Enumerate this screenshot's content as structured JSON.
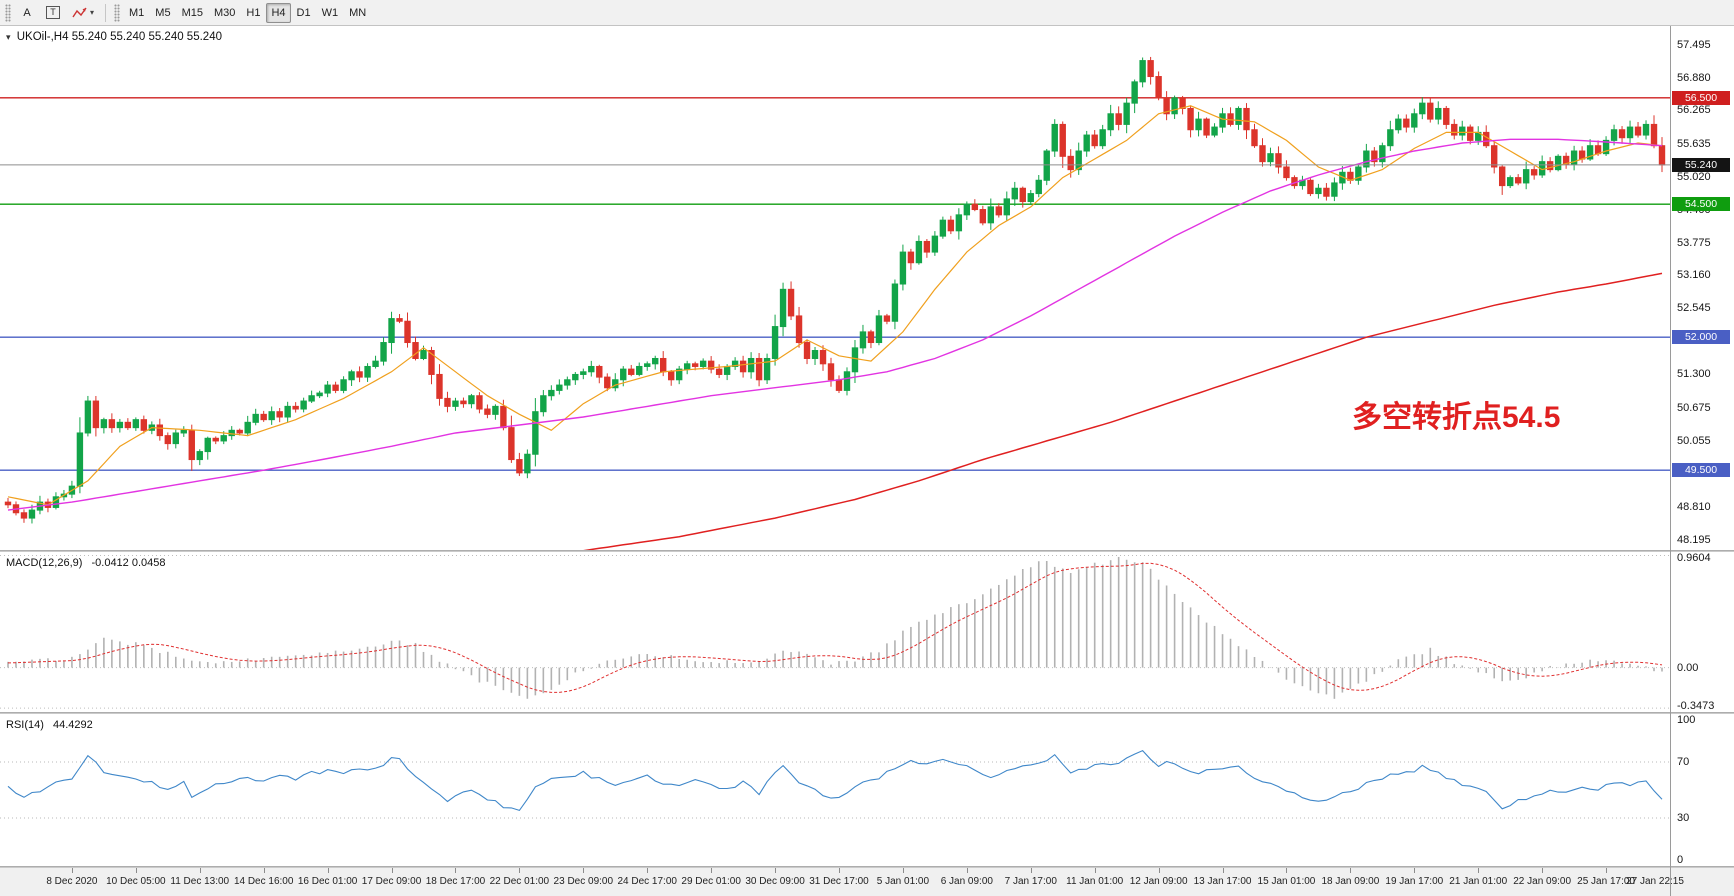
{
  "toolbar": {
    "text_tool": "A",
    "text_box_tool": "T",
    "timeframes": [
      {
        "label": "M1",
        "active": false
      },
      {
        "label": "M5",
        "active": false
      },
      {
        "label": "M15",
        "active": false
      },
      {
        "label": "M30",
        "active": false
      },
      {
        "label": "H1",
        "active": false
      },
      {
        "label": "H4",
        "active": true
      },
      {
        "label": "D1",
        "active": false
      },
      {
        "label": "W1",
        "active": false
      },
      {
        "label": "MN",
        "active": false
      }
    ]
  },
  "chart": {
    "symbol_label": "UKOil-,H4",
    "ohlc": "55.240 55.240 55.240 55.240",
    "annotation": {
      "text": "多空转折点54.5",
      "color": "#e02020"
    },
    "price_top": 57.85,
    "price_bottom": 48.0,
    "price_axis": [
      "57.495",
      "56.880",
      "56.265",
      "55.635",
      "55.020",
      "54.400",
      "53.775",
      "53.160",
      "52.545",
      "51.930",
      "51.300",
      "50.675",
      "50.055",
      "49.440",
      "48.810",
      "48.195"
    ],
    "hlines": [
      {
        "price": 56.5,
        "label": "56.500",
        "color": "#cf1f1f",
        "name": "resistance-line-56.500"
      },
      {
        "price": 54.5,
        "label": "54.500",
        "color": "#0f9d0f",
        "name": "support-line-54.500"
      },
      {
        "price": 52.0,
        "label": "52.000",
        "color": "#4a5fc4",
        "name": "level-line-52.000"
      },
      {
        "price": 49.5,
        "label": "49.500",
        "color": "#4a5fc4",
        "name": "level-line-49.500"
      }
    ],
    "current_price": {
      "value": 55.24,
      "label": "55.240",
      "line_color": "#8e8e8e",
      "badge_color": "#141414"
    }
  },
  "chart_data": {
    "type": "candlestick",
    "title": "UKOil- H4 candlestick chart",
    "symbol": "UKOil-",
    "timeframe": "H4",
    "ylim": [
      48.0,
      57.85
    ],
    "up_color": "#12a449",
    "down_color": "#dc342b",
    "first_open": 48.9,
    "closes": [
      48.85,
      48.7,
      48.6,
      48.75,
      48.9,
      48.8,
      49.0,
      49.05,
      49.2,
      50.2,
      50.8,
      50.3,
      50.45,
      50.3,
      50.4,
      50.3,
      50.45,
      50.25,
      50.35,
      50.15,
      50.0,
      50.2,
      50.25,
      49.7,
      49.85,
      50.1,
      50.05,
      50.15,
      50.25,
      50.2,
      50.4,
      50.55,
      50.45,
      50.6,
      50.5,
      50.7,
      50.65,
      50.8,
      50.9,
      50.95,
      51.1,
      51.0,
      51.2,
      51.35,
      51.25,
      51.45,
      51.55,
      51.9,
      52.35,
      52.3,
      51.9,
      51.6,
      51.75,
      51.3,
      50.85,
      50.7,
      50.8,
      50.75,
      50.9,
      50.65,
      50.55,
      50.7,
      50.3,
      49.7,
      49.45,
      49.8,
      50.6,
      50.9,
      51.0,
      51.1,
      51.2,
      51.3,
      51.35,
      51.45,
      51.25,
      51.05,
      51.2,
      51.4,
      51.3,
      51.45,
      51.5,
      51.6,
      51.35,
      51.2,
      51.4,
      51.5,
      51.45,
      51.55,
      51.4,
      51.3,
      51.45,
      51.55,
      51.35,
      51.6,
      51.2,
      51.6,
      52.2,
      52.9,
      52.4,
      51.9,
      51.6,
      51.75,
      51.5,
      51.2,
      51.0,
      51.35,
      51.8,
      52.1,
      51.9,
      52.4,
      52.3,
      53.0,
      53.6,
      53.4,
      53.8,
      53.6,
      53.9,
      54.2,
      54.0,
      54.3,
      54.5,
      54.4,
      54.15,
      54.45,
      54.3,
      54.6,
      54.8,
      54.55,
      54.7,
      54.95,
      55.5,
      56.0,
      55.4,
      55.15,
      55.5,
      55.8,
      55.6,
      55.9,
      56.2,
      56.0,
      56.4,
      56.8,
      57.2,
      56.9,
      56.5,
      56.2,
      56.5,
      56.3,
      55.9,
      56.1,
      55.8,
      55.95,
      56.2,
      56.0,
      56.3,
      55.9,
      55.6,
      55.3,
      55.45,
      55.2,
      55.0,
      54.85,
      54.95,
      54.7,
      54.8,
      54.65,
      54.9,
      55.1,
      54.95,
      55.2,
      55.5,
      55.3,
      55.6,
      55.9,
      56.1,
      55.95,
      56.2,
      56.4,
      56.1,
      56.3,
      56.0,
      55.8,
      55.95,
      55.7,
      55.85,
      55.6,
      55.2,
      54.85,
      55.0,
      54.9,
      55.15,
      55.05,
      55.3,
      55.15,
      55.4,
      55.25,
      55.5,
      55.35,
      55.6,
      55.45,
      55.7,
      55.9,
      55.75,
      55.95,
      55.8,
      56.0,
      55.6,
      55.24
    ],
    "ma": [
      {
        "name": "ma-fast",
        "color": "#f0a01e",
        "width": 1.2,
        "anchors": [
          [
            0,
            49.0
          ],
          [
            5,
            48.85
          ],
          [
            10,
            49.3
          ],
          [
            14,
            49.95
          ],
          [
            18,
            50.3
          ],
          [
            24,
            50.25
          ],
          [
            30,
            50.15
          ],
          [
            36,
            50.45
          ],
          [
            42,
            50.85
          ],
          [
            48,
            51.35
          ],
          [
            52,
            51.8
          ],
          [
            56,
            51.35
          ],
          [
            60,
            50.9
          ],
          [
            64,
            50.55
          ],
          [
            68,
            50.25
          ],
          [
            72,
            50.75
          ],
          [
            76,
            51.1
          ],
          [
            82,
            51.35
          ],
          [
            90,
            51.45
          ],
          [
            96,
            51.55
          ],
          [
            100,
            51.95
          ],
          [
            104,
            51.65
          ],
          [
            108,
            51.55
          ],
          [
            112,
            52.1
          ],
          [
            116,
            52.9
          ],
          [
            120,
            53.6
          ],
          [
            124,
            54.1
          ],
          [
            128,
            54.45
          ],
          [
            132,
            55.0
          ],
          [
            136,
            55.35
          ],
          [
            140,
            55.7
          ],
          [
            144,
            56.2
          ],
          [
            148,
            56.35
          ],
          [
            152,
            56.1
          ],
          [
            156,
            56.05
          ],
          [
            160,
            55.7
          ],
          [
            164,
            55.2
          ],
          [
            168,
            54.95
          ],
          [
            172,
            55.15
          ],
          [
            176,
            55.55
          ],
          [
            180,
            55.85
          ],
          [
            184,
            55.85
          ],
          [
            188,
            55.5
          ],
          [
            192,
            55.15
          ],
          [
            196,
            55.3
          ],
          [
            200,
            55.5
          ],
          [
            204,
            55.65
          ],
          [
            207,
            55.6
          ]
        ]
      },
      {
        "name": "ma-mid",
        "color": "#e234e2",
        "width": 1.4,
        "anchors": [
          [
            0,
            48.75
          ],
          [
            8,
            48.9
          ],
          [
            16,
            49.1
          ],
          [
            24,
            49.3
          ],
          [
            32,
            49.5
          ],
          [
            40,
            49.72
          ],
          [
            48,
            49.95
          ],
          [
            56,
            50.2
          ],
          [
            64,
            50.35
          ],
          [
            72,
            50.5
          ],
          [
            80,
            50.7
          ],
          [
            88,
            50.9
          ],
          [
            96,
            51.05
          ],
          [
            104,
            51.2
          ],
          [
            110,
            51.35
          ],
          [
            116,
            51.6
          ],
          [
            122,
            51.95
          ],
          [
            128,
            52.4
          ],
          [
            134,
            52.9
          ],
          [
            140,
            53.4
          ],
          [
            146,
            53.9
          ],
          [
            152,
            54.35
          ],
          [
            158,
            54.75
          ],
          [
            164,
            55.05
          ],
          [
            170,
            55.3
          ],
          [
            176,
            55.5
          ],
          [
            182,
            55.65
          ],
          [
            188,
            55.72
          ],
          [
            194,
            55.72
          ],
          [
            200,
            55.67
          ],
          [
            207,
            55.6
          ]
        ]
      },
      {
        "name": "ma-slow",
        "color": "#e02020",
        "width": 1.5,
        "anchors": [
          [
            68,
            47.9
          ],
          [
            84,
            48.25
          ],
          [
            96,
            48.6
          ],
          [
            106,
            48.95
          ],
          [
            114,
            49.3
          ],
          [
            122,
            49.7
          ],
          [
            130,
            50.05
          ],
          [
            138,
            50.4
          ],
          [
            146,
            50.8
          ],
          [
            154,
            51.2
          ],
          [
            162,
            51.6
          ],
          [
            170,
            52.0
          ],
          [
            178,
            52.3
          ],
          [
            186,
            52.6
          ],
          [
            194,
            52.85
          ],
          [
            200,
            53.0
          ],
          [
            207,
            53.2
          ]
        ]
      }
    ]
  },
  "macd": {
    "title": "MACD(12,26,9)",
    "values": "-0.0412 0.0458",
    "axis_max": "0.9604",
    "axis_zero": "0.00",
    "axis_min": "-0.3473",
    "vmax": 0.99,
    "vmin": -0.38,
    "hist_color": "#b2b2b2",
    "signal_color": "#e03030",
    "anchors": [
      [
        0,
        0.04
      ],
      [
        4,
        0.06
      ],
      [
        8,
        0.08
      ],
      [
        12,
        0.24
      ],
      [
        16,
        0.2
      ],
      [
        20,
        0.12
      ],
      [
        24,
        0.06
      ],
      [
        28,
        0.04
      ],
      [
        32,
        0.08
      ],
      [
        36,
        0.1
      ],
      [
        40,
        0.12
      ],
      [
        44,
        0.16
      ],
      [
        48,
        0.22
      ],
      [
        51,
        0.2
      ],
      [
        54,
        0.05
      ],
      [
        58,
        -0.08
      ],
      [
        62,
        -0.2
      ],
      [
        65,
        -0.28
      ],
      [
        68,
        -0.18
      ],
      [
        71,
        -0.05
      ],
      [
        74,
        0.04
      ],
      [
        78,
        0.1
      ],
      [
        82,
        0.1
      ],
      [
        86,
        0.07
      ],
      [
        90,
        0.05
      ],
      [
        94,
        0.04
      ],
      [
        97,
        0.15
      ],
      [
        100,
        0.12
      ],
      [
        103,
        0.03
      ],
      [
        106,
        0.05
      ],
      [
        109,
        0.15
      ],
      [
        112,
        0.3
      ],
      [
        116,
        0.45
      ],
      [
        120,
        0.55
      ],
      [
        124,
        0.7
      ],
      [
        127,
        0.85
      ],
      [
        130,
        0.92
      ],
      [
        133,
        0.8
      ],
      [
        136,
        0.88
      ],
      [
        139,
        0.93
      ],
      [
        142,
        0.9
      ],
      [
        145,
        0.7
      ],
      [
        148,
        0.5
      ],
      [
        151,
        0.35
      ],
      [
        154,
        0.2
      ],
      [
        157,
        0.05
      ],
      [
        160,
        -0.1
      ],
      [
        163,
        -0.2
      ],
      [
        166,
        -0.25
      ],
      [
        169,
        -0.15
      ],
      [
        172,
        -0.02
      ],
      [
        175,
        0.1
      ],
      [
        178,
        0.15
      ],
      [
        181,
        0.05
      ],
      [
        184,
        -0.03
      ],
      [
        187,
        -0.12
      ],
      [
        190,
        -0.08
      ],
      [
        193,
        0
      ],
      [
        196,
        0.04
      ],
      [
        199,
        0.06
      ],
      [
        202,
        0.05
      ],
      [
        205,
        0
      ],
      [
        207,
        -0.04
      ]
    ]
  },
  "rsi": {
    "title": "RSI(14)",
    "value": "44.4292",
    "line_color": "#3f87c9",
    "levels": [
      "100",
      "70",
      "30",
      "0"
    ],
    "anchors": [
      [
        0,
        52
      ],
      [
        2,
        45
      ],
      [
        4,
        50
      ],
      [
        6,
        55
      ],
      [
        8,
        58
      ],
      [
        10,
        75
      ],
      [
        11,
        70
      ],
      [
        12,
        62
      ],
      [
        14,
        60
      ],
      [
        16,
        58
      ],
      [
        18,
        55
      ],
      [
        20,
        50
      ],
      [
        22,
        56
      ],
      [
        23,
        44
      ],
      [
        24,
        48
      ],
      [
        26,
        55
      ],
      [
        28,
        57
      ],
      [
        30,
        60
      ],
      [
        32,
        56
      ],
      [
        34,
        60
      ],
      [
        36,
        58
      ],
      [
        38,
        62
      ],
      [
        40,
        64
      ],
      [
        42,
        62
      ],
      [
        44,
        65
      ],
      [
        46,
        66
      ],
      [
        48,
        72
      ],
      [
        49,
        71
      ],
      [
        51,
        60
      ],
      [
        53,
        50
      ],
      [
        55,
        42
      ],
      [
        56,
        46
      ],
      [
        58,
        50
      ],
      [
        60,
        44
      ],
      [
        62,
        38
      ],
      [
        64,
        34
      ],
      [
        66,
        52
      ],
      [
        68,
        58
      ],
      [
        70,
        60
      ],
      [
        72,
        62
      ],
      [
        74,
        58
      ],
      [
        76,
        52
      ],
      [
        78,
        58
      ],
      [
        80,
        60
      ],
      [
        82,
        55
      ],
      [
        84,
        52
      ],
      [
        86,
        56
      ],
      [
        88,
        54
      ],
      [
        90,
        50
      ],
      [
        92,
        56
      ],
      [
        94,
        48
      ],
      [
        96,
        62
      ],
      [
        97,
        68
      ],
      [
        99,
        56
      ],
      [
        101,
        50
      ],
      [
        103,
        44
      ],
      [
        105,
        48
      ],
      [
        107,
        56
      ],
      [
        109,
        58
      ],
      [
        111,
        66
      ],
      [
        113,
        70
      ],
      [
        115,
        68
      ],
      [
        117,
        71
      ],
      [
        119,
        68
      ],
      [
        121,
        64
      ],
      [
        123,
        60
      ],
      [
        125,
        64
      ],
      [
        127,
        66
      ],
      [
        129,
        68
      ],
      [
        131,
        74
      ],
      [
        133,
        62
      ],
      [
        135,
        66
      ],
      [
        137,
        68
      ],
      [
        139,
        70
      ],
      [
        141,
        76
      ],
      [
        142,
        78
      ],
      [
        144,
        68
      ],
      [
        146,
        70
      ],
      [
        148,
        62
      ],
      [
        150,
        64
      ],
      [
        152,
        66
      ],
      [
        154,
        68
      ],
      [
        156,
        58
      ],
      [
        158,
        54
      ],
      [
        160,
        48
      ],
      [
        162,
        45
      ],
      [
        164,
        42
      ],
      [
        166,
        46
      ],
      [
        168,
        48
      ],
      [
        170,
        54
      ],
      [
        172,
        58
      ],
      [
        174,
        62
      ],
      [
        176,
        64
      ],
      [
        177,
        67
      ],
      [
        179,
        62
      ],
      [
        181,
        56
      ],
      [
        183,
        52
      ],
      [
        185,
        50
      ],
      [
        187,
        38
      ],
      [
        189,
        42
      ],
      [
        191,
        46
      ],
      [
        193,
        50
      ],
      [
        195,
        48
      ],
      [
        197,
        52
      ],
      [
        199,
        50
      ],
      [
        201,
        56
      ],
      [
        203,
        54
      ],
      [
        205,
        57
      ],
      [
        206,
        48
      ],
      [
        207,
        44.4
      ]
    ]
  },
  "time_axis": {
    "labels": [
      "8 Dec 2020",
      "10 Dec 05:00",
      "11 Dec 13:00",
      "14 Dec 16:00",
      "16 Dec 01:00",
      "17 Dec 09:00",
      "18 Dec 17:00",
      "22 Dec 01:00",
      "23 Dec 09:00",
      "24 Dec 17:00",
      "29 Dec 01:00",
      "30 Dec 09:00",
      "31 Dec 17:00",
      "5 Jan 01:00",
      "6 Jan 09:00",
      "7 Jan 17:00",
      "11 Jan 01:00",
      "12 Jan 09:00",
      "13 Jan 17:00",
      "15 Jan 01:00",
      "18 Jan 09:00",
      "19 Jan 17:00",
      "21 Jan 01:00",
      "22 Jan 09:00",
      "25 Jan 17:00",
      "27 Jan 22:15"
    ]
  }
}
